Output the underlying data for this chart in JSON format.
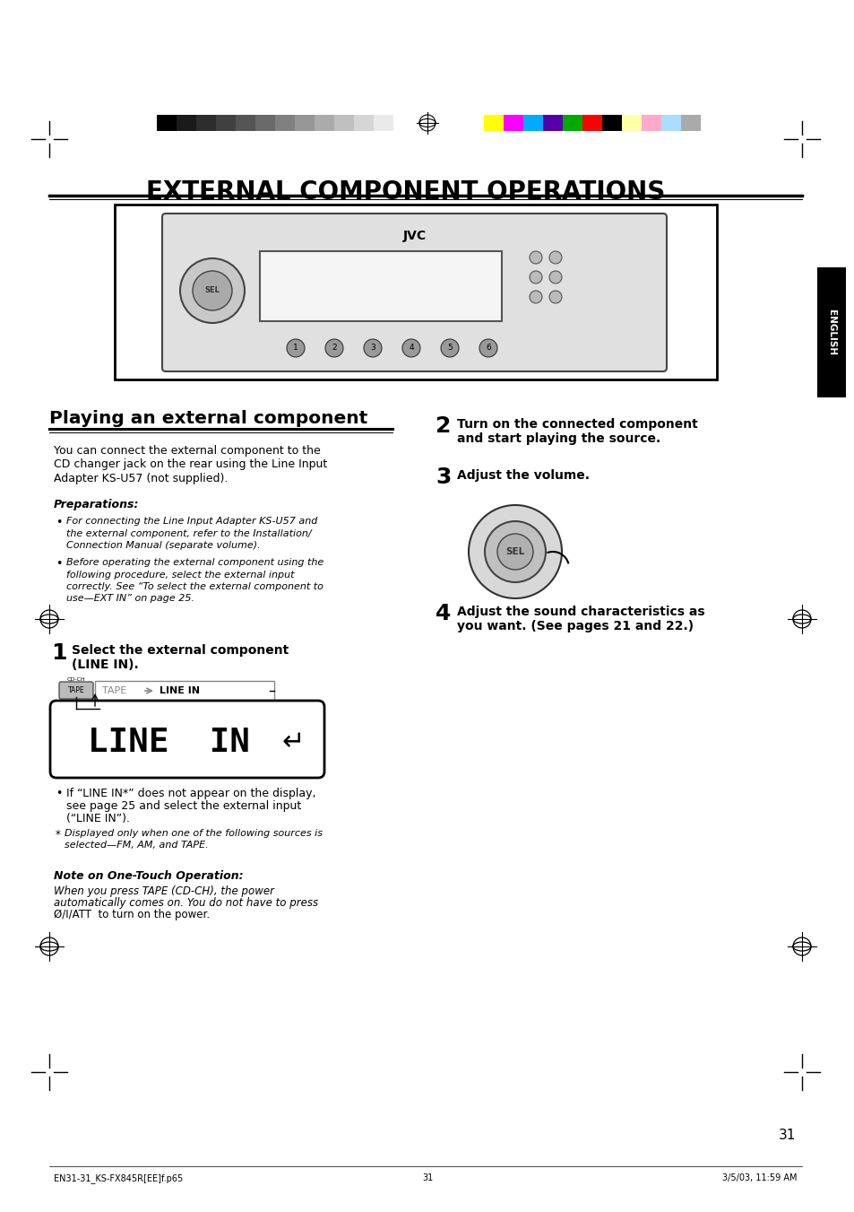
{
  "bg_color": "#ffffff",
  "title": "EXTERNAL COMPONENT OPERATIONS",
  "title_fontsize": 20,
  "section_title": "Playing an external component",
  "page_number": "31",
  "footer_left": "EN31-31_KS-FX845R[EE]f.p65",
  "footer_mid": "31",
  "footer_right": "3/5/03, 11:59 AM",
  "color_bar_left_colors": [
    "#000000",
    "#1a1a1a",
    "#2d2d2d",
    "#404040",
    "#555555",
    "#6a6a6a",
    "#808080",
    "#969696",
    "#ababab",
    "#c0c0c0",
    "#d5d5d5",
    "#eaeaea",
    "#ffffff"
  ],
  "color_bar_right_colors": [
    "#ffff00",
    "#ff00ff",
    "#00aaff",
    "#5500aa",
    "#00aa00",
    "#ff0000",
    "#000000",
    "#ffffaa",
    "#ffaacc",
    "#aaddff",
    "#aaaaaa"
  ],
  "main_text_col1": [
    "You can connect the external component to the",
    "CD changer jack on the rear using the Line Input",
    "Adapter KS-U57 (not supplied)."
  ],
  "preparations_label": "Preparations:",
  "prep_bullet1_italic": "For connecting the Line Input Adapter KS-U57 and",
  "prep_bullet1b_italic": "the external component, refer to the Installation/",
  "prep_bullet1c_italic": "Connection Manual (separate volume).",
  "prep_bullet2_italic": "Before operating the external component using the",
  "prep_bullet2b_italic": "following procedure, select the external input",
  "prep_bullet2c_italic": "correctly. See “To select the external component to",
  "prep_bullet2d_italic": "use—EXT IN” on page 25.",
  "step1_num": "1",
  "step1_text": "Select the external component\n(LINE IN).",
  "step1_display_text": "LINE  IN",
  "bullet_linein1": "If “LINE IN*” does not appear on the display,",
  "bullet_linein1b": "see page 25 and select the external input",
  "bullet_linein1c": "(“LINE IN”).",
  "bullet_linein2_italic": "Displayed only when one of the following sources is",
  "bullet_linein2b_italic": "selected—FM, AM, and TAPE.",
  "note_title_italic": "Note on One-Touch Operation:",
  "note_text1_italic": "When you press TAPE (CD-CH), the power",
  "note_text2_italic": "automatically comes on. You do not have to press",
  "note_text3": "Ø/I/ATT  to turn on the power.",
  "step2_num": "2",
  "step2_text": "Turn on the connected component\nand start playing the source.",
  "step3_num": "3",
  "step3_text": "Adjust the volume.",
  "step4_num": "4",
  "step4_text": "Adjust the sound characteristics as\nyou want. (See pages 21 and 22.)",
  "english_tab": "ENGLISH"
}
